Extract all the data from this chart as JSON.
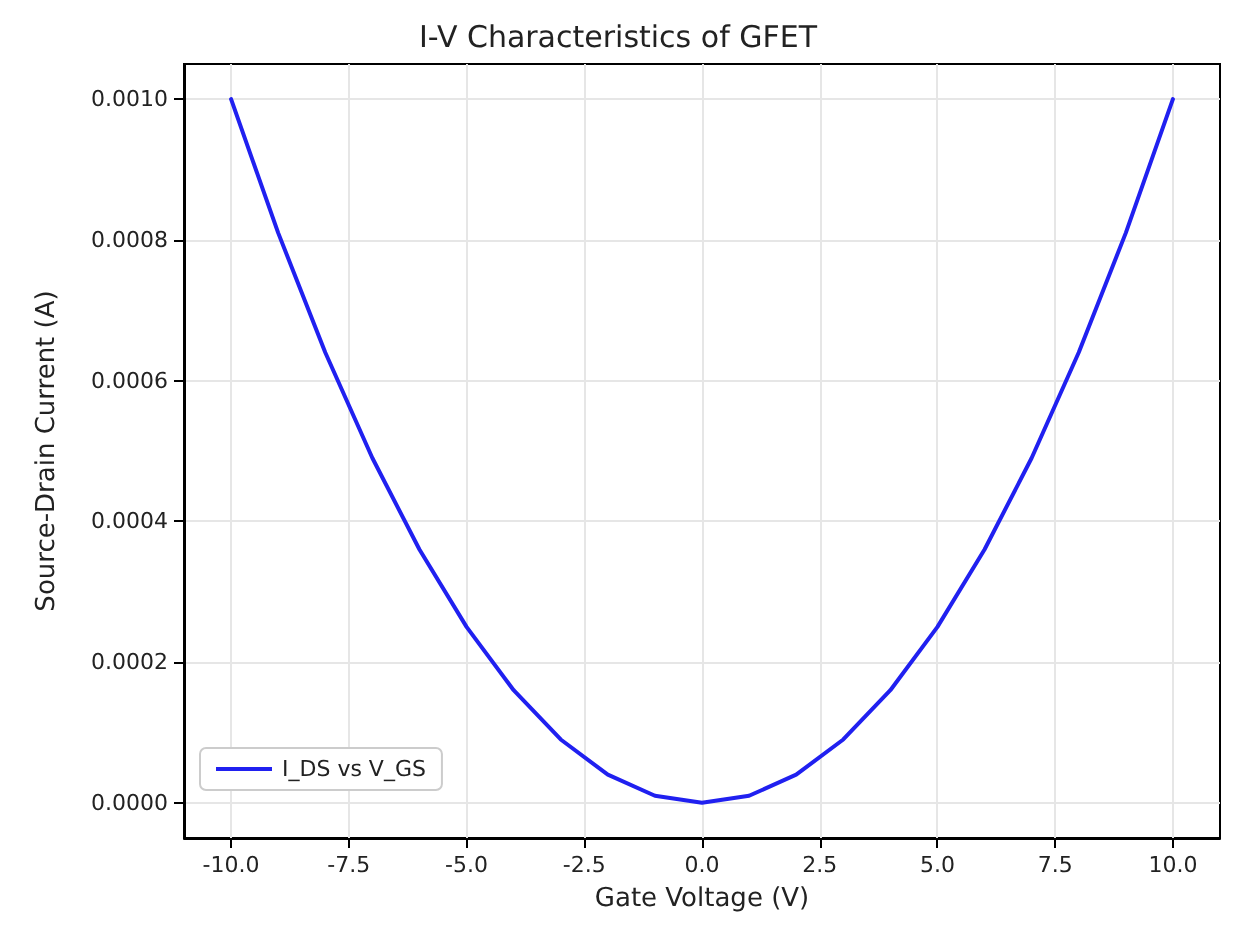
{
  "chart_data": {
    "type": "line",
    "title": "I-V Characteristics of GFET",
    "xlabel": "Gate Voltage (V)",
    "ylabel": "Source-Drain Current (A)",
    "x": [
      -10,
      -9,
      -8,
      -7,
      -6,
      -5,
      -4,
      -3,
      -2,
      -1,
      0,
      1,
      2,
      3,
      4,
      5,
      6,
      7,
      8,
      9,
      10
    ],
    "series": [
      {
        "name": "I_DS vs V_GS",
        "color": "#2020f0",
        "values": [
          0.001,
          0.00081,
          0.00064,
          0.00049,
          0.00036,
          0.00025,
          0.00016,
          9e-05,
          4e-05,
          1e-05,
          0,
          1e-05,
          4e-05,
          9e-05,
          0.00016,
          0.00025,
          0.00036,
          0.00049,
          0.00064,
          0.00081,
          0.001
        ]
      }
    ],
    "xlim": [
      -11,
      11
    ],
    "xticks": [
      {
        "value": -10,
        "label": "-10.0"
      },
      {
        "value": -7.5,
        "label": "-7.5"
      },
      {
        "value": -5,
        "label": "-5.0"
      },
      {
        "value": -2.5,
        "label": "-2.5"
      },
      {
        "value": 0,
        "label": "0.0"
      },
      {
        "value": 2.5,
        "label": "2.5"
      },
      {
        "value": 5,
        "label": "5.0"
      },
      {
        "value": 7.5,
        "label": "7.5"
      },
      {
        "value": 10,
        "label": "10.0"
      }
    ],
    "ylim": [
      -5e-05,
      0.00105
    ],
    "yticks": [
      {
        "value": 0,
        "label": "0.0000"
      },
      {
        "value": 0.0002,
        "label": "0.0002"
      },
      {
        "value": 0.0004,
        "label": "0.0004"
      },
      {
        "value": 0.0006,
        "label": "0.0006"
      },
      {
        "value": 0.0008,
        "label": "0.0008"
      },
      {
        "value": 0.001,
        "label": "0.0010"
      }
    ],
    "grid": true,
    "legend": "bottom left",
    "marker": "none",
    "line_style": "solid"
  }
}
